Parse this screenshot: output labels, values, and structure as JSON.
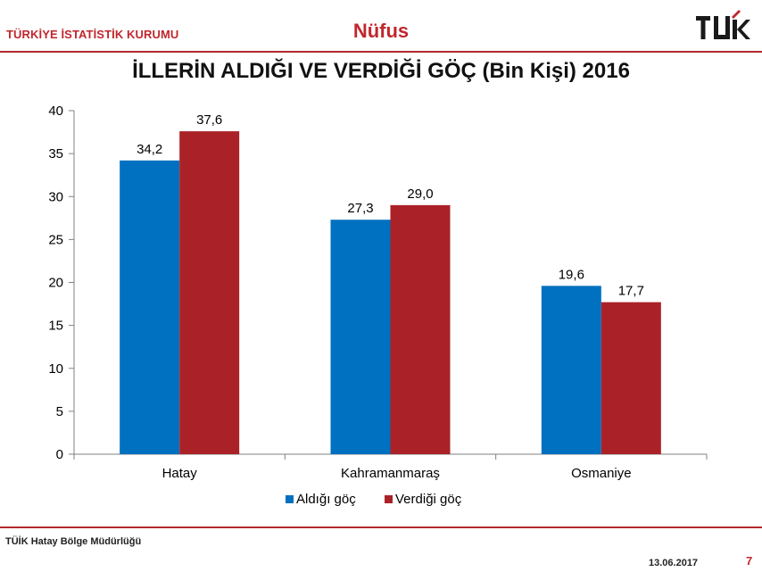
{
  "header": {
    "organization": "TÜRKİYE İSTATİSTİK KURUMU",
    "section": "Nüfus",
    "logo_icon": "tuik-logo"
  },
  "footer": {
    "office": "TÜİK Hatay Bölge Müdürlüğü",
    "date": "13.06.2017",
    "page_number": "7"
  },
  "colors": {
    "accent": "#b22a2e",
    "series1": "#0070c0",
    "series2": "#aa2228"
  },
  "chart_data": {
    "type": "bar",
    "title": "İLLERİN ALDIĞI VE VERDİĞİ GÖÇ (Bin Kişi) 2016",
    "categories": [
      "Hatay",
      "Kahramanmaraş",
      "Osmaniye"
    ],
    "series": [
      {
        "name": "Aldığı göç",
        "values": [
          34.2,
          27.3,
          19.6
        ],
        "labels": [
          "34,2",
          "27,3",
          "19,6"
        ],
        "color": "#0070c0"
      },
      {
        "name": "Verdiği göç",
        "values": [
          37.6,
          29.0,
          17.7
        ],
        "labels": [
          "37,6",
          "29,0",
          "17,7"
        ],
        "color": "#aa2228"
      }
    ],
    "ylim": [
      0,
      40
    ],
    "yticks": [
      0,
      5,
      10,
      15,
      20,
      25,
      30,
      35,
      40
    ],
    "grid": false,
    "legend": "bottom"
  }
}
